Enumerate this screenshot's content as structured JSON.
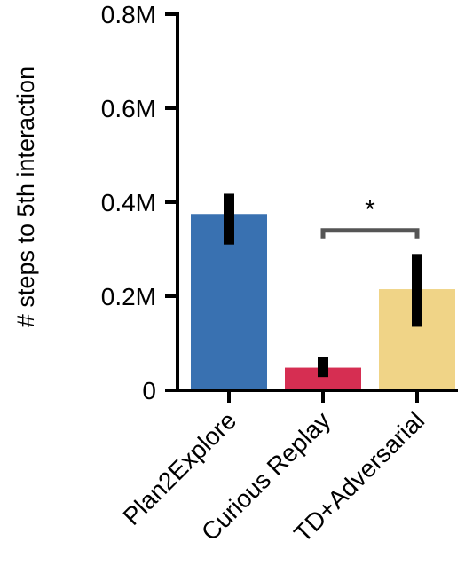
{
  "chart_data": {
    "type": "bar",
    "title": "",
    "xlabel": "",
    "ylabel": "# steps to 5th interaction",
    "ylim": [
      0,
      800000
    ],
    "yticks": [
      0,
      200000,
      400000,
      600000,
      800000
    ],
    "ytick_labels": [
      "0",
      "0.2M",
      "0.4M",
      "0.6M",
      "0.8M"
    ],
    "categories": [
      "Plan2Explore",
      "Curious Replay",
      "TD+Adversarial"
    ],
    "values": [
      375000,
      48000,
      215000
    ],
    "error_low": [
      310000,
      28000,
      135000
    ],
    "error_high": [
      418000,
      70000,
      290000
    ],
    "colors": [
      "#3971b1",
      "#d62e52",
      "#f0d487"
    ],
    "error_color": "#000000",
    "significance": {
      "from_category": 1,
      "to_category": 2,
      "at_value": 340000,
      "label": "*",
      "color": "#555555"
    },
    "grid": false,
    "legend": "none"
  }
}
